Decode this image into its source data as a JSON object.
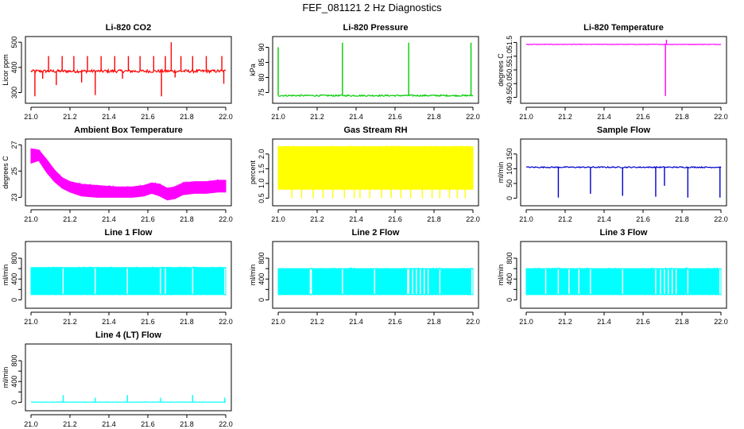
{
  "title": "FEF_081121  2 Hz Diagnostics",
  "x_tick_labels": [
    "21.0",
    "21.2",
    "21.4",
    "21.6",
    "21.8",
    "22.0"
  ],
  "chart_data": [
    {
      "type": "line",
      "title": "Li-820 CO2",
      "ylabel": "Licor ppm",
      "color": "#ff0000",
      "xlim": [
        21.0,
        22.0
      ],
      "ylim": [
        270,
        510
      ],
      "yticks": [
        300,
        400,
        500
      ],
      "ytick_labels": [
        "300",
        "400",
        "500"
      ],
      "baseline": 385,
      "noise": 6,
      "spikes": [
        {
          "x": 21.02,
          "y": 285
        },
        {
          "x": 21.06,
          "y": 355
        },
        {
          "x": 21.09,
          "y": 445
        },
        {
          "x": 21.13,
          "y": 330
        },
        {
          "x": 21.16,
          "y": 445
        },
        {
          "x": 21.22,
          "y": 445
        },
        {
          "x": 21.26,
          "y": 340
        },
        {
          "x": 21.29,
          "y": 445
        },
        {
          "x": 21.33,
          "y": 290
        },
        {
          "x": 21.36,
          "y": 445
        },
        {
          "x": 21.43,
          "y": 445
        },
        {
          "x": 21.47,
          "y": 355
        },
        {
          "x": 21.5,
          "y": 445
        },
        {
          "x": 21.56,
          "y": 445
        },
        {
          "x": 21.63,
          "y": 445
        },
        {
          "x": 21.67,
          "y": 285
        },
        {
          "x": 21.69,
          "y": 445
        },
        {
          "x": 21.72,
          "y": 500
        },
        {
          "x": 21.74,
          "y": 360
        },
        {
          "x": 21.77,
          "y": 445
        },
        {
          "x": 21.83,
          "y": 445
        },
        {
          "x": 21.9,
          "y": 445
        },
        {
          "x": 21.98,
          "y": 445
        },
        {
          "x": 21.99,
          "y": 335
        }
      ]
    },
    {
      "type": "line",
      "title": "Li-820 Pressure",
      "ylabel": "kPa",
      "color": "#00cc00",
      "xlim": [
        21.0,
        22.0
      ],
      "ylim": [
        72.5,
        92.5
      ],
      "yticks": [
        75,
        80,
        85,
        90
      ],
      "ytick_labels": [
        "75",
        "80",
        "85",
        "90"
      ],
      "baseline": 74.0,
      "noise": 0.25,
      "spikes": [
        {
          "x": 21.0,
          "y": 90.0
        },
        {
          "x": 21.33,
          "y": 91.5
        },
        {
          "x": 21.67,
          "y": 91.5
        },
        {
          "x": 21.99,
          "y": 91.5
        }
      ]
    },
    {
      "type": "line",
      "title": "Li-820 Temperature",
      "ylabel": "degrees C",
      "color": "#ff00ff",
      "xlim": [
        21.0,
        22.0
      ],
      "ylim": [
        49.4,
        51.6
      ],
      "yticks": [
        49.5,
        50.0,
        50.5,
        51.0,
        51.5
      ],
      "ytick_labels": [
        "49.5",
        "50.0",
        "50.5",
        "51.0",
        "51.5"
      ],
      "baseline": 51.43,
      "noise": 0.01,
      "spikes": [
        {
          "x": 21.715,
          "y": 49.55
        },
        {
          "x": 21.72,
          "y": 51.6
        }
      ]
    },
    {
      "type": "band",
      "title": "Ambient Box Temperature",
      "ylabel": "degrees C",
      "color": "#ff00ff",
      "xlim": [
        21.0,
        22.0
      ],
      "ylim": [
        22.6,
        27.2
      ],
      "yticks": [
        23,
        25,
        27
      ],
      "ytick_labels": [
        "23",
        "25",
        "27"
      ],
      "x": [
        21.0,
        21.04,
        21.08,
        21.12,
        21.16,
        21.2,
        21.26,
        21.34,
        21.44,
        21.52,
        21.58,
        21.62,
        21.66,
        21.7,
        21.74,
        21.78,
        21.84,
        21.9,
        21.96,
        22.0
      ],
      "low": [
        25.6,
        25.8,
        24.9,
        24.2,
        23.7,
        23.4,
        23.1,
        23.0,
        23.0,
        23.0,
        23.1,
        23.3,
        23.1,
        22.8,
        22.9,
        23.2,
        23.3,
        23.3,
        23.4,
        23.4
      ],
      "high": [
        26.7,
        26.6,
        25.9,
        25.1,
        24.5,
        24.2,
        24.0,
        23.9,
        23.8,
        23.8,
        23.9,
        24.1,
        24.0,
        23.7,
        23.8,
        24.1,
        24.2,
        24.2,
        24.3,
        24.3
      ]
    },
    {
      "type": "band",
      "title": "Gas Stream RH",
      "ylabel": "percent",
      "color": "#ffff00",
      "xlim": [
        21.0,
        22.0
      ],
      "ylim": [
        0.35,
        2.4
      ],
      "yticks": [
        0.5,
        1.0,
        1.5,
        2.0
      ],
      "ytick_labels": [
        "0.5",
        "1.0",
        "1.5",
        "2.0"
      ],
      "x": [
        21.0,
        22.0
      ],
      "low": [
        0.8,
        0.8
      ],
      "high": [
        2.25,
        2.25
      ],
      "drops": [
        21.07,
        21.12,
        21.18,
        21.23,
        21.28,
        21.34,
        21.39,
        21.42,
        21.47,
        21.53,
        21.58,
        21.63,
        21.68,
        21.74,
        21.79,
        21.83,
        21.88,
        21.92,
        21.96
      ],
      "drop_to": 0.5
    },
    {
      "type": "line",
      "title": "Sample Flow",
      "ylabel": "ml/min",
      "color": "#0000cc",
      "xlim": [
        21.0,
        22.0
      ],
      "ylim": [
        -15,
        190
      ],
      "yticks": [
        0,
        50,
        100,
        150
      ],
      "ytick_labels": [
        "0",
        "50",
        "100",
        "150"
      ],
      "baseline": 105,
      "noise": 2,
      "spikes": [
        {
          "x": 21.165,
          "y": 2
        },
        {
          "x": 21.33,
          "y": 15
        },
        {
          "x": 21.495,
          "y": 8
        },
        {
          "x": 21.665,
          "y": 5
        },
        {
          "x": 21.71,
          "y": 42
        },
        {
          "x": 21.83,
          "y": 2
        },
        {
          "x": 21.995,
          "y": 2
        }
      ]
    },
    {
      "type": "band",
      "title": "Line 1 Flow",
      "ylabel": "ml/min",
      "color": "#00ffff",
      "xlim": [
        21.0,
        22.0
      ],
      "ylim": [
        -100,
        1060
      ],
      "yticks": [
        0,
        200,
        400,
        600,
        800
      ],
      "ytick_labels": [
        "0",
        "400",
        "800"
      ],
      "x": [
        21.0,
        22.0
      ],
      "low": [
        100,
        100
      ],
      "high": [
        620,
        620
      ],
      "gaps": [
        21.165,
        21.33,
        21.495,
        21.665,
        21.69,
        21.83,
        21.995
      ]
    },
    {
      "type": "band",
      "title": "Line 2 Flow",
      "ylabel": "ml/min",
      "color": "#00ffff",
      "xlim": [
        21.0,
        22.0
      ],
      "ylim": [
        -100,
        1060
      ],
      "yticks": [
        0,
        200,
        400,
        600,
        800
      ],
      "ytick_labels": [
        "0",
        "400",
        "800"
      ],
      "x": [
        21.0,
        22.0
      ],
      "low": [
        100,
        100
      ],
      "high": [
        600,
        600
      ],
      "gaps": [
        21.165,
        21.17,
        21.33,
        21.495,
        21.665,
        21.67,
        21.69,
        21.71,
        21.73,
        21.75,
        21.77,
        21.83,
        21.995
      ]
    },
    {
      "type": "band",
      "title": "Line 3 Flow",
      "ylabel": "ml/min",
      "color": "#00ffff",
      "xlim": [
        21.0,
        22.0
      ],
      "ylim": [
        -100,
        1060
      ],
      "yticks": [
        0,
        200,
        400,
        600,
        800
      ],
      "ytick_labels": [
        "0",
        "400",
        "800"
      ],
      "x": [
        21.0,
        22.0
      ],
      "low": [
        100,
        100
      ],
      "high": [
        600,
        600
      ],
      "gaps": [
        21.1,
        21.165,
        21.22,
        21.27,
        21.33,
        21.495,
        21.665,
        21.69,
        21.71,
        21.73,
        21.75,
        21.77,
        21.83,
        21.995
      ]
    },
    {
      "type": "line",
      "title": "Line 4 (LT) Flow",
      "ylabel": "ml/min",
      "color": "#00ffff",
      "xlim": [
        21.0,
        22.0
      ],
      "ylim": [
        -100,
        1060
      ],
      "yticks": [
        0,
        200,
        400,
        600,
        800
      ],
      "ytick_labels": [
        "0",
        "400",
        "800"
      ],
      "baseline": 5,
      "noise": 3,
      "spikes": [
        {
          "x": 21.165,
          "y": 140
        },
        {
          "x": 21.33,
          "y": 90
        },
        {
          "x": 21.495,
          "y": 140
        },
        {
          "x": 21.665,
          "y": 90
        },
        {
          "x": 21.83,
          "y": 140
        },
        {
          "x": 21.995,
          "y": 90
        }
      ]
    }
  ]
}
